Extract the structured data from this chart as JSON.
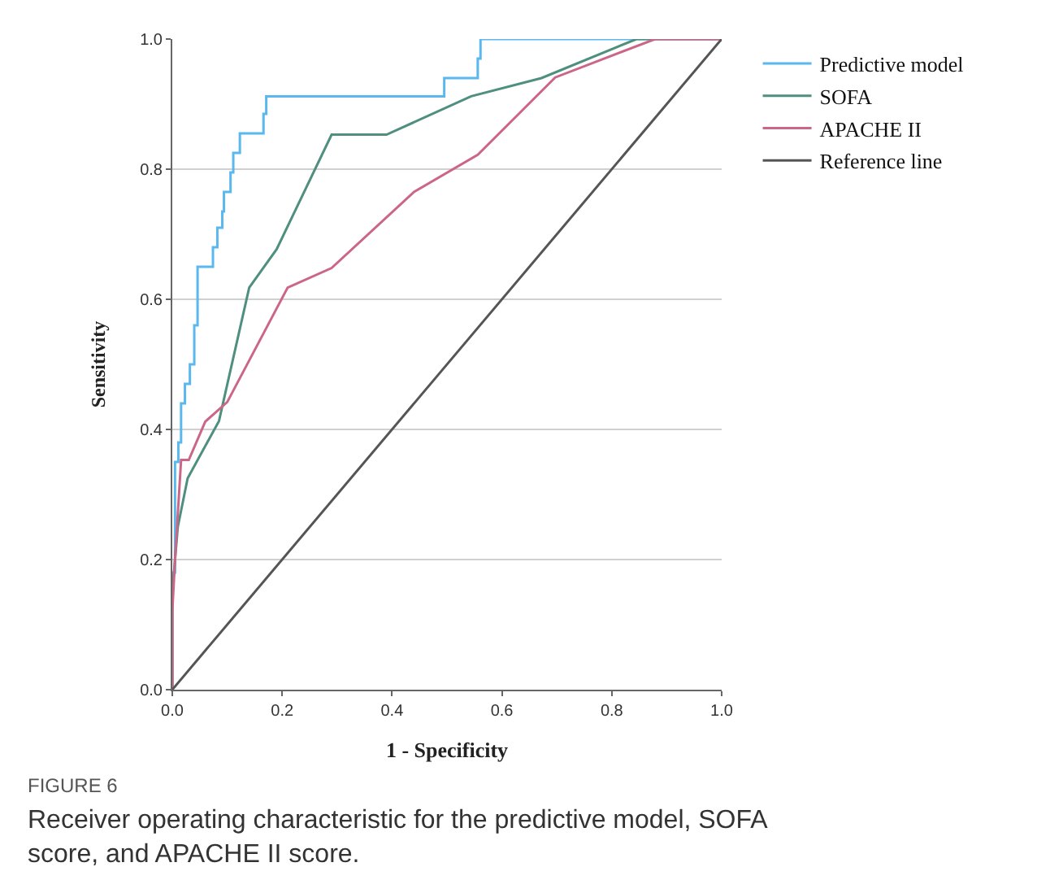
{
  "chart_data": {
    "type": "line",
    "xlabel": "1 - Specificity",
    "ylabel": "Sensitivity",
    "xlim": [
      0,
      1
    ],
    "ylim": [
      0,
      1
    ],
    "xticks": [
      {
        "value": 0,
        "label": "0.0"
      },
      {
        "value": 0.2,
        "label": "0.2"
      },
      {
        "value": 0.4,
        "label": "0.4"
      },
      {
        "value": 0.6,
        "label": "0.6"
      },
      {
        "value": 0.8,
        "label": "0.8"
      },
      {
        "value": 1,
        "label": "1.0"
      }
    ],
    "yticks": [
      {
        "value": 0,
        "label": "0.0"
      },
      {
        "value": 0.2,
        "label": "0.2"
      },
      {
        "value": 0.4,
        "label": "0.4"
      },
      {
        "value": 0.6,
        "label": "0.6"
      },
      {
        "value": 0.8,
        "label": "0.8"
      },
      {
        "value": 1,
        "label": "1.0"
      }
    ],
    "grid": "y",
    "legend": "top right",
    "marker": "none",
    "line_style": "solid",
    "series": [
      {
        "name": "Predictive model",
        "color": "#5bb8ee",
        "x": [
          0,
          0,
          0.005,
          0.005,
          0.011,
          0.011,
          0.016,
          0.016,
          0.023,
          0.023,
          0.032,
          0.032,
          0.04,
          0.04,
          0.046,
          0.046,
          0.074,
          0.074,
          0.082,
          0.082,
          0.091,
          0.091,
          0.094,
          0.094,
          0.106,
          0.106,
          0.111,
          0.111,
          0.123,
          0.123,
          0.166,
          0.166,
          0.171,
          0.171,
          0.495,
          0.495,
          0.556,
          0.556,
          0.561,
          0.561,
          1
        ],
        "values": [
          0,
          0.18,
          0.18,
          0.35,
          0.35,
          0.38,
          0.38,
          0.44,
          0.44,
          0.47,
          0.47,
          0.5,
          0.5,
          0.56,
          0.56,
          0.65,
          0.65,
          0.68,
          0.68,
          0.71,
          0.71,
          0.735,
          0.735,
          0.765,
          0.765,
          0.795,
          0.795,
          0.825,
          0.825,
          0.855,
          0.855,
          0.885,
          0.885,
          0.912,
          0.912,
          0.94,
          0.94,
          0.97,
          0.97,
          1,
          1
        ]
      },
      {
        "name": "SOFA",
        "color": "#4e8f7f",
        "x": [
          0,
          0,
          0.01,
          0.028,
          0.085,
          0.14,
          0.19,
          0.29,
          0.39,
          0.544,
          0.672,
          0.845,
          1
        ],
        "values": [
          0,
          0.15,
          0.25,
          0.325,
          0.413,
          0.618,
          0.677,
          0.853,
          0.853,
          0.912,
          0.94,
          1,
          1
        ]
      },
      {
        "name": "APACHE II",
        "color": "#cc6688",
        "x": [
          0,
          0,
          0.005,
          0.016,
          0.03,
          0.06,
          0.1,
          0.21,
          0.29,
          0.44,
          0.556,
          0.697,
          0.879,
          1
        ],
        "values": [
          0,
          0.12,
          0.2,
          0.353,
          0.353,
          0.412,
          0.442,
          0.618,
          0.648,
          0.765,
          0.822,
          0.941,
          1,
          1
        ]
      },
      {
        "name": "Reference line",
        "color": "#555555",
        "x": [
          0,
          1
        ],
        "values": [
          0,
          1
        ]
      }
    ],
    "annotations": [
      "FIGURE 6",
      "Receiver operating characteristic for the predictive model, SOFA score, and APACHE II score."
    ]
  }
}
